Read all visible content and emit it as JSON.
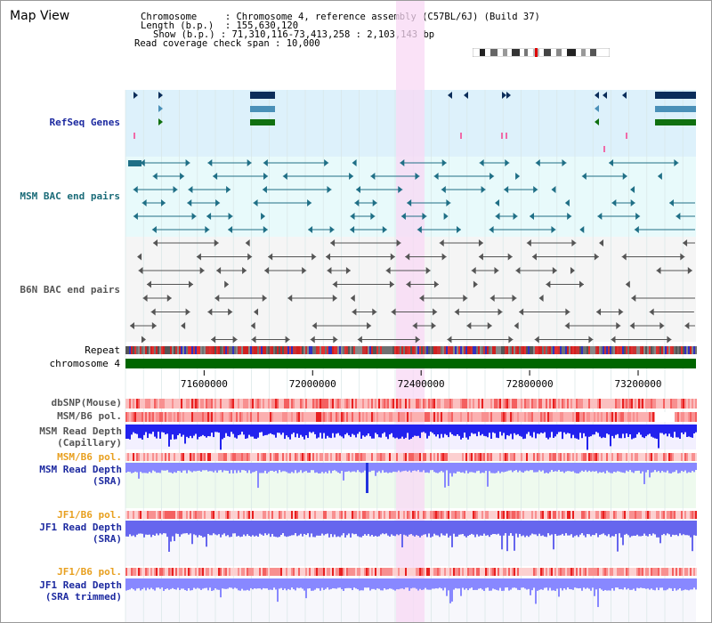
{
  "title": "Map View",
  "info": {
    "chromosome_label": "Chromosome",
    "chromosome_value": "Chromosome 4, reference assembly (C57BL/6J) (Build 37)",
    "length_label": "Length (b.p.)",
    "length_value": "155,630,120",
    "show_label": "Show (b.p.)",
    "show_value": "71,310,116-73,413,258 : 2,103,143 bp",
    "coverage_label": "Read coverage check span",
    "coverage_value": "10,000"
  },
  "tracks": {
    "refseq": "RefSeq Genes",
    "msm_bac": "MSM BAC end pairs",
    "b6n_bac": "B6N BAC end pairs",
    "repeat": "Repeat",
    "chromosome": "chromosome 4",
    "dbsnp": "dbSNP(Mouse)",
    "msm_b6_pol_1": "MSM/B6 pol.",
    "msm_depth_cap_1": "MSM Read Depth",
    "msm_depth_cap_2": "(Capillary)",
    "msm_b6_pol_2": "MSM/B6 pol.",
    "msm_depth_sra_1": "MSM Read Depth",
    "msm_depth_sra_2": "(SRA)",
    "jf1_b6_pol_1": "JF1/B6 pol.",
    "jf1_depth_sra_1": "JF1 Read Depth",
    "jf1_depth_sra_2": "(SRA)",
    "jf1_b6_pol_2": "JF1/B6 pol.",
    "jf1_depth_trim_1": "JF1 Read Depth",
    "jf1_depth_trim_2": "(SRA trimmed)"
  },
  "axis": {
    "ticks": [
      "71600000",
      "72000000",
      "72400000",
      "72800000",
      "73200000"
    ],
    "tick_values": [
      71600000,
      72000000,
      72400000,
      72800000,
      73200000
    ],
    "range": [
      71310116,
      73413258
    ]
  },
  "colors": {
    "refseq_bg": "#ddf1fb",
    "msm_bac_bg": "#e8fafb",
    "highlight": "#f8d8f4",
    "chromosome": "#006600",
    "gene_navy": "#0b2d5a",
    "gene_blue": "#4a90b8",
    "gene_green": "#107010",
    "msm_bac_line": "#1f6f86",
    "b6n_line": "#555555",
    "depth_blue": "#2222ee",
    "depth_light": "#8888ff"
  }
}
